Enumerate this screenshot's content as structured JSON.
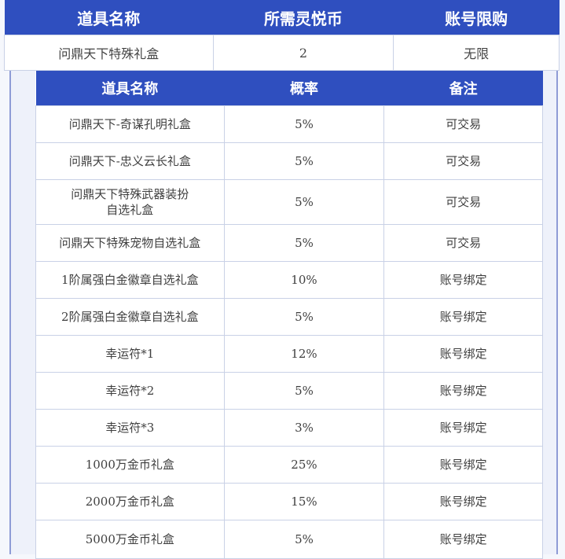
{
  "purchase_table": {
    "headers": [
      "道具名称",
      "所需灵悦币",
      "账号限购"
    ],
    "row": [
      "问鼎天下特殊礼盒",
      "2",
      "无限"
    ]
  },
  "drop_table": {
    "headers": [
      "道具名称",
      "概率",
      "备注"
    ],
    "rows": [
      [
        "问鼎天下-奇谋孔明礼盒",
        "5%",
        "可交易"
      ],
      [
        "问鼎天下-忠义云长礼盒",
        "5%",
        "可交易"
      ],
      [
        "问鼎天下特殊武器装扮\n自选礼盒",
        "5%",
        "可交易"
      ],
      [
        "问鼎天下特殊宠物自选礼盒",
        "5%",
        "可交易"
      ],
      [
        "1阶属强白金徽章自选礼盒",
        "10%",
        "账号绑定"
      ],
      [
        "2阶属强白金徽章自选礼盒",
        "5%",
        "账号绑定"
      ],
      [
        "幸运符*1",
        "12%",
        "账号绑定"
      ],
      [
        "幸运符*2",
        "5%",
        "账号绑定"
      ],
      [
        "幸运符*3",
        "3%",
        "账号绑定"
      ],
      [
        "1000万金币礼盒",
        "25%",
        "账号绑定"
      ],
      [
        "2000万金币礼盒",
        "15%",
        "账号绑定"
      ],
      [
        "5000万金币礼盒",
        "5%",
        "账号绑定"
      ]
    ]
  }
}
